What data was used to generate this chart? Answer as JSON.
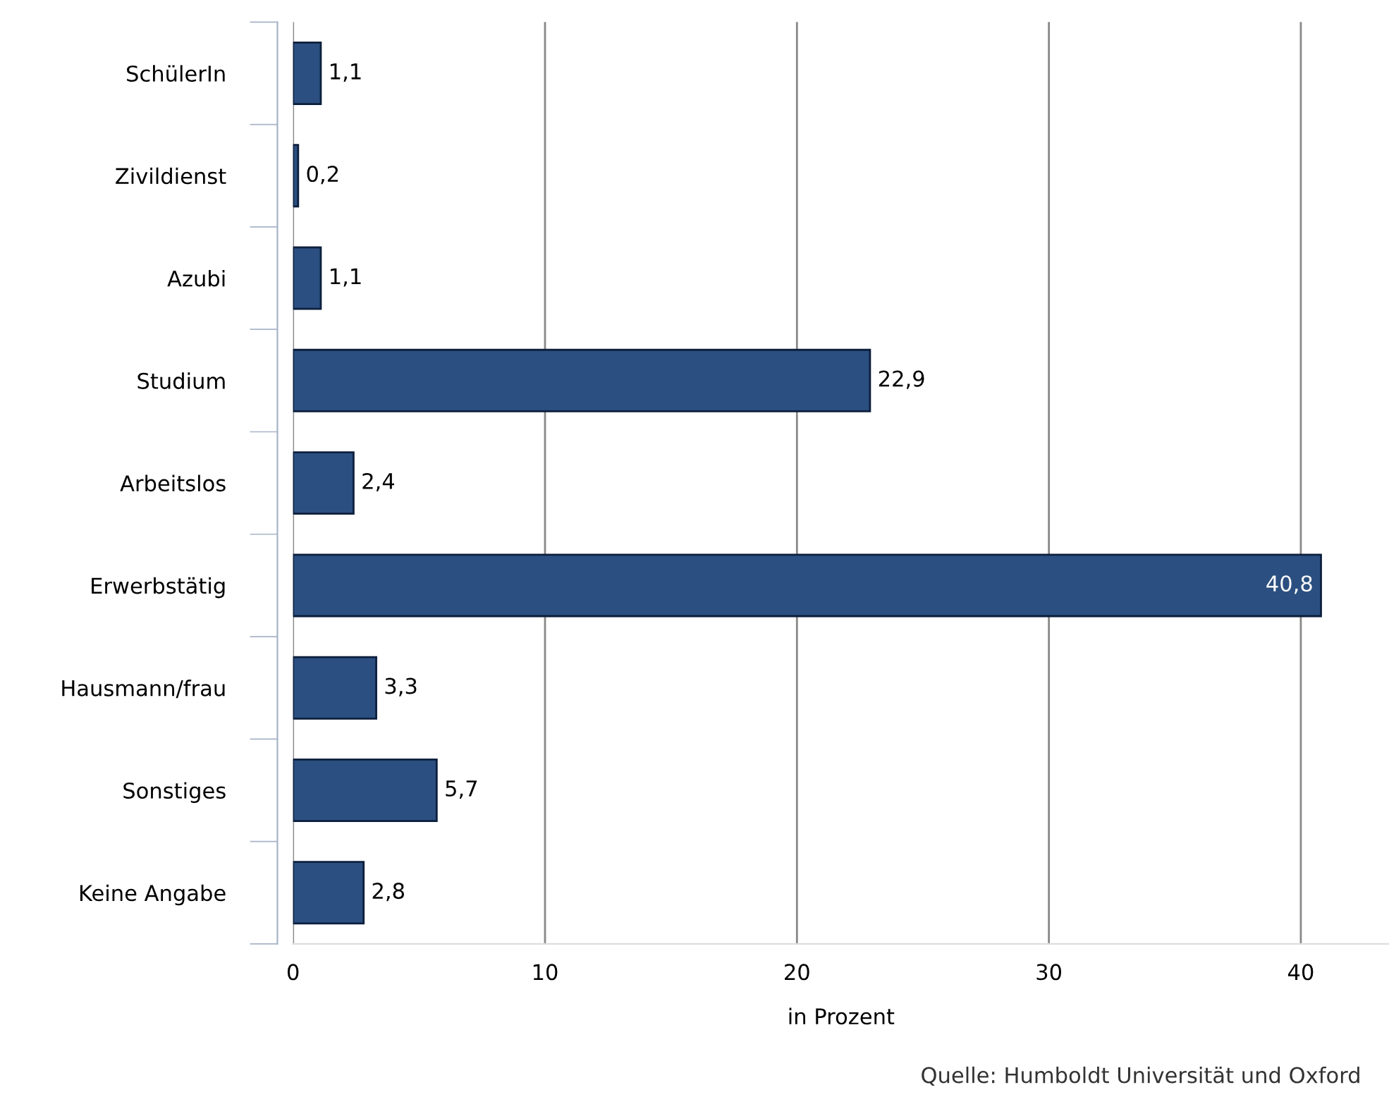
{
  "chart_data": {
    "type": "bar",
    "orientation": "horizontal",
    "xlabel": "in Prozent",
    "categories": [
      "SchülerIn",
      "Zivildienst",
      "Azubi",
      "Studium",
      "Arbeitslos",
      "Erwerbstätig",
      "Hausmann/frau",
      "Sonstiges",
      "Keine Angabe"
    ],
    "values": [
      1.1,
      0.2,
      1.1,
      22.9,
      2.4,
      40.8,
      3.3,
      5.7,
      2.8
    ],
    "value_labels": [
      "1,1",
      "0,2",
      "1,1",
      "22,9",
      "2,4",
      "40,8",
      "3,3",
      "5,7",
      "2,8"
    ],
    "color": "#2b4f80",
    "xlim": [
      0,
      43.5
    ],
    "xticks": [
      0,
      10,
      20,
      30,
      40
    ],
    "grid": "x",
    "annotations": [
      "Quelle: Humboldt Universität und Oxford"
    ]
  }
}
